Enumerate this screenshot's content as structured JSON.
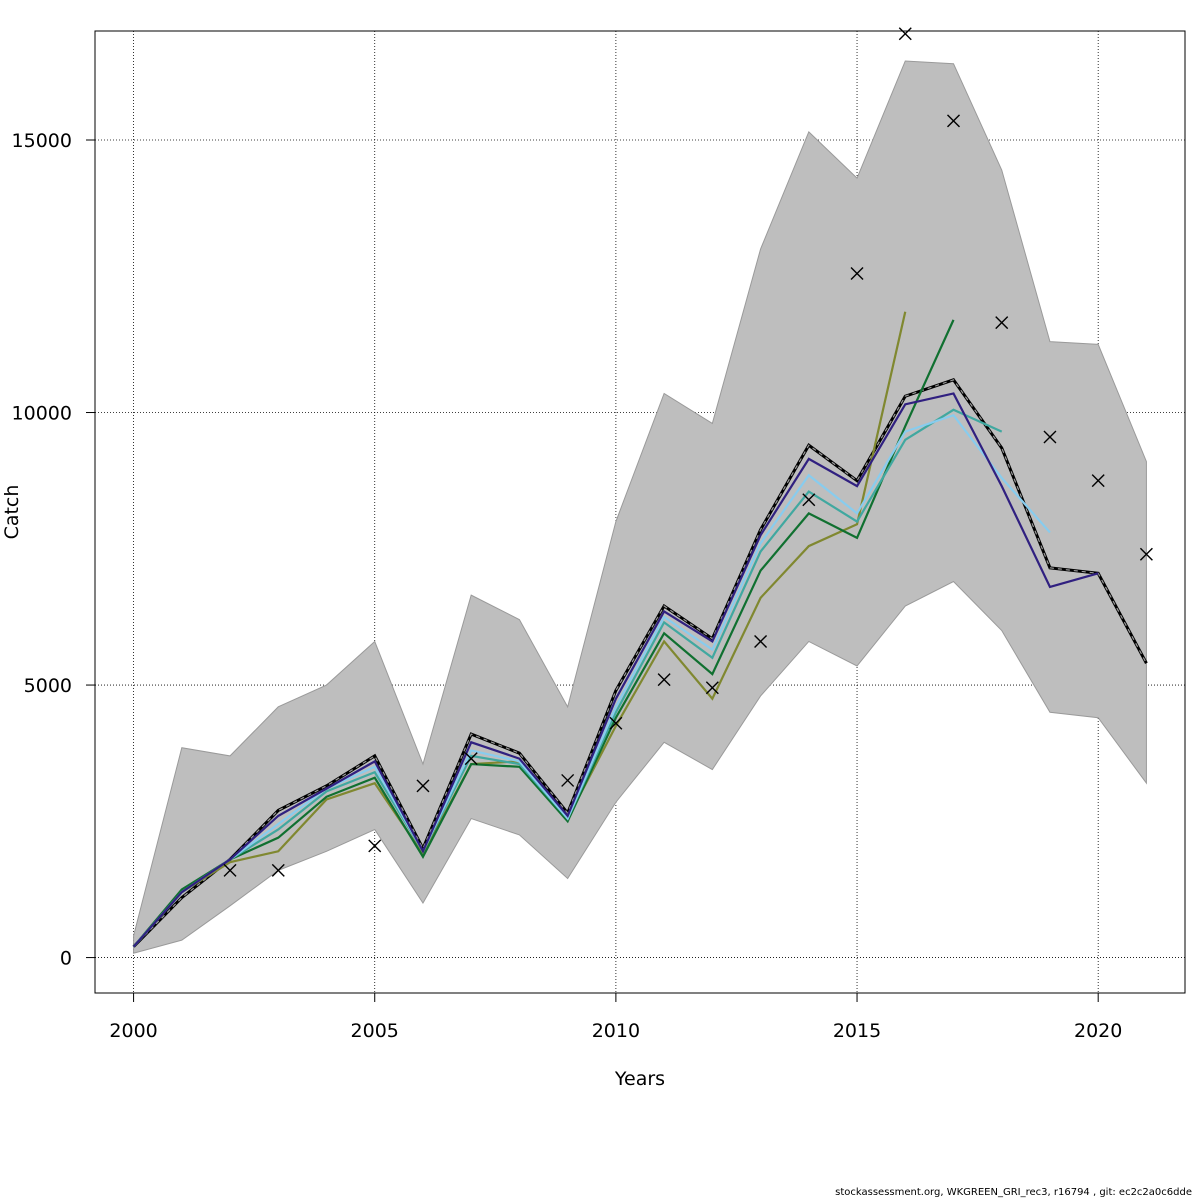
{
  "footer": "stockassessment.org, WKGREEN_GRI_rec3, r16794 , git: ec2c2a0c6dde",
  "chart_data": {
    "type": "line",
    "title": "",
    "xlabel": "Years",
    "ylabel": "Catch",
    "xlim": [
      1999.2,
      2021.8
    ],
    "ylim": [
      -650,
      17000
    ],
    "x_ticks": [
      2000,
      2005,
      2010,
      2015,
      2020
    ],
    "y_ticks": [
      0,
      5000,
      10000,
      15000
    ],
    "grid": true,
    "band": {
      "color": "#bebebe",
      "x": [
        2000,
        2001,
        2002,
        2003,
        2004,
        2005,
        2006,
        2007,
        2008,
        2009,
        2010,
        2011,
        2012,
        2013,
        2014,
        2015,
        2016,
        2017,
        2018,
        2019,
        2020,
        2021
      ],
      "upper": [
        400,
        3850,
        3700,
        4600,
        5000,
        5800,
        3550,
        6650,
        6200,
        4600,
        8000,
        10350,
        9800,
        13000,
        15150,
        14300,
        16450,
        16400,
        14450,
        11300,
        11250,
        9100
      ],
      "lower": [
        80,
        320,
        950,
        1600,
        1950,
        2350,
        1000,
        2550,
        2250,
        1450,
        2850,
        3950,
        3450,
        4800,
        5800,
        5350,
        6450,
        6900,
        6000,
        4500,
        4400,
        3200
      ]
    },
    "observed": {
      "marker": "x",
      "x": [
        2002,
        2003,
        2005,
        2006,
        2007,
        2009,
        2010,
        2011,
        2012,
        2013,
        2014,
        2015,
        2016,
        2017,
        2018,
        2019,
        2020,
        2021
      ],
      "y": [
        1600,
        1600,
        2050,
        3150,
        3650,
        3250,
        4300,
        5100,
        4950,
        5800,
        8400,
        12550,
        16950,
        15350,
        11650,
        9550,
        8750,
        7400
      ]
    },
    "series": [
      {
        "color": "#000000",
        "dashed": true,
        "x": [
          2000,
          2001,
          2002,
          2003,
          2004,
          2005,
          2006,
          2007,
          2008,
          2009,
          2010,
          2011,
          2012,
          2013,
          2014,
          2015,
          2016,
          2017,
          2018,
          2019,
          2020,
          2021
        ],
        "y": [
          200,
          1100,
          1800,
          2700,
          3150,
          3700,
          2000,
          4100,
          3750,
          2650,
          4900,
          6450,
          5850,
          7850,
          9400,
          8750,
          10300,
          10600,
          9350,
          7150,
          7050,
          5400
        ]
      },
      {
        "color": "#808830",
        "dashed": false,
        "x": [
          2000,
          2001,
          2002,
          2003,
          2004,
          2005,
          2006,
          2007,
          2008,
          2009,
          2010,
          2011,
          2012,
          2013,
          2014,
          2015,
          2016
        ],
        "y": [
          200,
          1200,
          1750,
          1950,
          2900,
          3200,
          1900,
          3550,
          3600,
          2550,
          4250,
          5800,
          4750,
          6600,
          7550,
          7950,
          11850
        ]
      },
      {
        "color": "#107030",
        "dashed": false,
        "x": [
          2000,
          2001,
          2002,
          2003,
          2004,
          2005,
          2006,
          2007,
          2008,
          2009,
          2010,
          2011,
          2012,
          2013,
          2014,
          2015,
          2016,
          2017
        ],
        "y": [
          200,
          1250,
          1800,
          2200,
          2950,
          3300,
          1850,
          3550,
          3500,
          2500,
          4400,
          5950,
          5200,
          7100,
          8150,
          7700,
          9750,
          11700
        ]
      },
      {
        "color": "#40a8a0",
        "dashed": false,
        "x": [
          2000,
          2001,
          2002,
          2003,
          2004,
          2005,
          2006,
          2007,
          2008,
          2009,
          2010,
          2011,
          2012,
          2013,
          2014,
          2015,
          2016,
          2017,
          2018
        ],
        "y": [
          200,
          1200,
          1800,
          2350,
          3050,
          3400,
          1950,
          3700,
          3550,
          2550,
          4500,
          6150,
          5500,
          7450,
          8550,
          8000,
          9500,
          10050,
          9650
        ]
      },
      {
        "color": "#88ccee",
        "dashed": false,
        "x": [
          2000,
          2001,
          2002,
          2003,
          2004,
          2005,
          2006,
          2007,
          2008,
          2009,
          2010,
          2011,
          2012,
          2013,
          2014,
          2015,
          2016,
          2017,
          2018,
          2019
        ],
        "y": [
          200,
          1200,
          1800,
          2450,
          3100,
          3500,
          1950,
          3800,
          3600,
          2550,
          4600,
          6250,
          5650,
          7600,
          8850,
          8150,
          9650,
          9950,
          8800,
          7800
        ]
      },
      {
        "color": "#302080",
        "dashed": false,
        "x": [
          2000,
          2001,
          2002,
          2003,
          2004,
          2005,
          2006,
          2007,
          2008,
          2009,
          2010,
          2011,
          2012,
          2013,
          2014,
          2015,
          2016,
          2017,
          2018,
          2019,
          2020
        ],
        "y": [
          200,
          1200,
          1800,
          2600,
          3100,
          3600,
          1950,
          3950,
          3650,
          2600,
          4750,
          6350,
          5800,
          7750,
          9150,
          8650,
          10150,
          10350,
          8650,
          6800,
          7050
        ]
      }
    ]
  }
}
